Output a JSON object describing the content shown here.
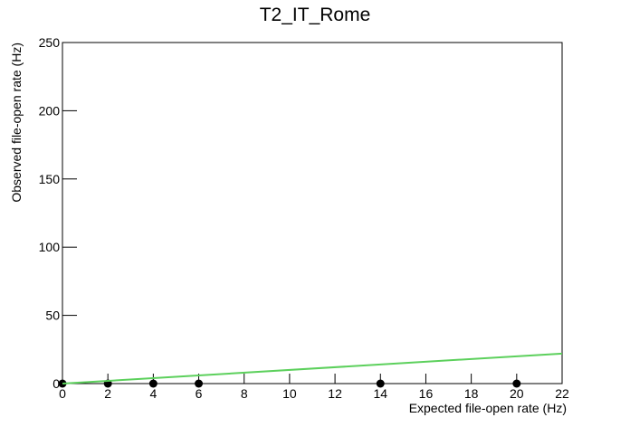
{
  "chart_data": {
    "type": "scatter",
    "title": "T2_IT_Rome",
    "x_label": "Expected file-open rate (Hz)",
    "y_label": "Observed file-open rate (Hz)",
    "series": [
      {
        "color": "#000000",
        "x": [
          0,
          2,
          4,
          6,
          14,
          20
        ],
        "values": [
          0,
          0,
          0,
          0,
          0,
          0
        ]
      },
      {
        "type": "line",
        "color": "#5cd05c",
        "x": [
          0,
          22
        ],
        "values": [
          0,
          22
        ]
      }
    ],
    "xlim": [
      0,
      22
    ],
    "xticks": [
      0,
      2,
      4,
      6,
      8,
      10,
      12,
      14,
      16,
      18,
      20,
      22
    ],
    "ylim": [
      0,
      250
    ],
    "yticks": [
      0,
      50,
      100,
      150,
      200,
      250
    ],
    "grid": false
  }
}
